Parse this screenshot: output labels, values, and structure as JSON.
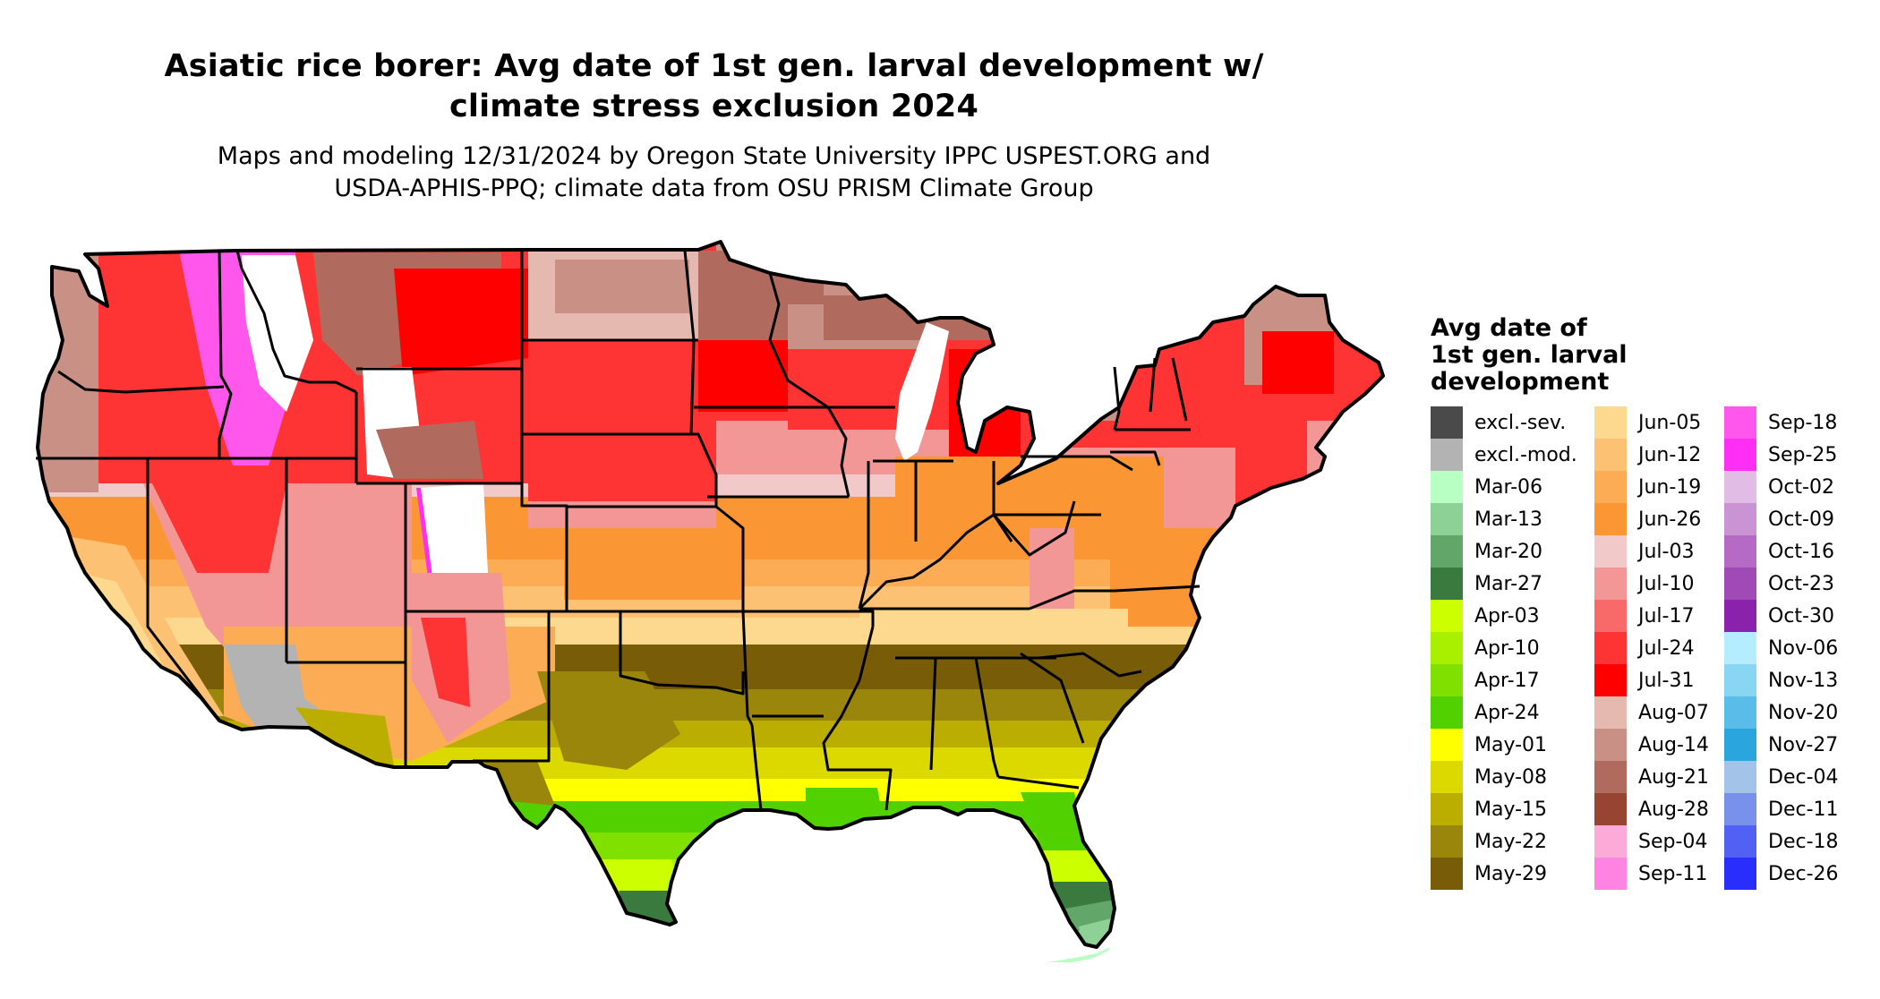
{
  "title": {
    "line1": "Asiatic rice borer: Avg date of 1st gen. larval development w/",
    "line2": "climate stress exclusion 2024"
  },
  "subtitle": {
    "line1": "Maps and modeling 12/31/2024 by Oregon State University IPPC USPEST.ORG and",
    "line2": "USDA-APHIS-PPQ; climate data from OSU PRISM Climate Group"
  },
  "map": {
    "region": "Contiguous United States",
    "variable": "Average date of 1st generation larval development",
    "colors": {
      "state_border": "#000000",
      "no_data": "#ffffff"
    }
  },
  "legend": {
    "title_line1": "Avg date of",
    "title_line2": "1st gen. larval",
    "title_line3": "development",
    "columns": [
      [
        {
          "label": "excl.-sev.",
          "color": "#4a4a4a"
        },
        {
          "label": "excl.-mod.",
          "color": "#b3b3b3"
        },
        {
          "label": "Mar-06",
          "color": "#b8ffc4"
        },
        {
          "label": "Mar-13",
          "color": "#8ed196"
        },
        {
          "label": "Mar-20",
          "color": "#63a66a"
        },
        {
          "label": "Mar-27",
          "color": "#3b7a3e"
        },
        {
          "label": "Apr-03",
          "color": "#ccff00"
        },
        {
          "label": "Apr-10",
          "color": "#a8f000"
        },
        {
          "label": "Apr-17",
          "color": "#80e000"
        },
        {
          "label": "Apr-24",
          "color": "#52d100"
        },
        {
          "label": "May-01",
          "color": "#ffff00"
        },
        {
          "label": "May-08",
          "color": "#dcd900"
        },
        {
          "label": "May-15",
          "color": "#bcae00"
        },
        {
          "label": "May-22",
          "color": "#9a860a"
        },
        {
          "label": "May-29",
          "color": "#785c08"
        }
      ],
      [
        {
          "label": "Jun-05",
          "color": "#fdd88f"
        },
        {
          "label": "Jun-12",
          "color": "#fdc173"
        },
        {
          "label": "Jun-19",
          "color": "#fbac55"
        },
        {
          "label": "Jun-26",
          "color": "#fb9634"
        },
        {
          "label": "Jul-03",
          "color": "#f2c9c9"
        },
        {
          "label": "Jul-10",
          "color": "#f39696"
        },
        {
          "label": "Jul-17",
          "color": "#f86a6a"
        },
        {
          "label": "Jul-24",
          "color": "#fe3333"
        },
        {
          "label": "Jul-31",
          "color": "#ff0000"
        },
        {
          "label": "Aug-07",
          "color": "#e5b8b0"
        },
        {
          "label": "Aug-14",
          "color": "#c99185"
        },
        {
          "label": "Aug-21",
          "color": "#b06b5e"
        },
        {
          "label": "Aug-28",
          "color": "#974532"
        },
        {
          "label": "Sep-04",
          "color": "#fcabd9"
        },
        {
          "label": "Sep-11",
          "color": "#ff84e1"
        }
      ],
      [
        {
          "label": "Sep-18",
          "color": "#ff57ec"
        },
        {
          "label": "Sep-25",
          "color": "#ff2ef4"
        },
        {
          "label": "Oct-02",
          "color": "#e1bde5"
        },
        {
          "label": "Oct-09",
          "color": "#ca94d4"
        },
        {
          "label": "Oct-16",
          "color": "#b56bc5"
        },
        {
          "label": "Oct-23",
          "color": "#a04ab8"
        },
        {
          "label": "Oct-30",
          "color": "#8b22ab"
        },
        {
          "label": "Nov-06",
          "color": "#b3edff"
        },
        {
          "label": "Nov-13",
          "color": "#89d6f3"
        },
        {
          "label": "Nov-20",
          "color": "#5abce9"
        },
        {
          "label": "Nov-27",
          "color": "#2ba5dd"
        },
        {
          "label": "Dec-04",
          "color": "#a3c4e8"
        },
        {
          "label": "Dec-11",
          "color": "#7891eb"
        },
        {
          "label": "Dec-18",
          "color": "#5161f3"
        },
        {
          "label": "Dec-26",
          "color": "#2a2efd"
        }
      ]
    ]
  }
}
